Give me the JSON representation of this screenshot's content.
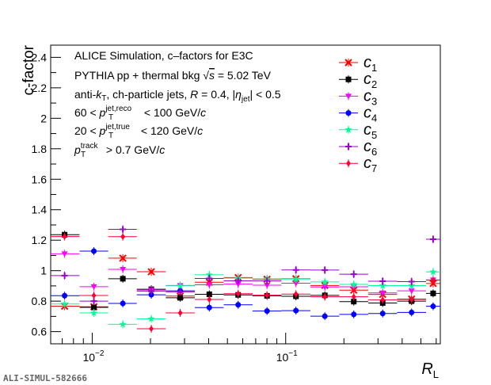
{
  "figure_id": "ALI-SIMUL-582666",
  "chart_data": {
    "type": "scatter",
    "xlabel": "R",
    "xlabel_sub": "L",
    "ylabel": "c-factor",
    "x_scale": "log",
    "xlim": [
      0.0061,
      0.63
    ],
    "ylim": [
      0.52,
      2.48
    ],
    "yticks": [
      "0.6",
      "0.8",
      "1",
      "1.2",
      "1.4",
      "1.6",
      "1.8",
      "2",
      "2.2",
      "2.4"
    ],
    "xtick_labels": [
      {
        "base": "10",
        "exp": "−2"
      },
      {
        "base": "10",
        "exp": "−1"
      }
    ],
    "grid": false,
    "legend_position": "top-right",
    "annotations": [
      "ALICE Simulation, c–factors for E3C",
      "PYTHIA pp + thermal bkg √s = 5.02 TeV",
      "anti-kT, ch-particle jets, R = 0.4, |ηjet| < 0.5",
      "60 < pTjet,reco < 100 GeV/c",
      "20 < pTjet,true < 120 GeV/c",
      "pTtrack > 0.7 GeV/c"
    ],
    "annotation_parts": {
      "line1": "ALICE Simulation, c–factors for E3C",
      "line2_pre": "PYTHIA pp + thermal bkg ",
      "line2_sqrt": "√",
      "line2_s": "s",
      "line2_post": " = 5.02 TeV",
      "line3_pre": "anti-",
      "line3_k": "k",
      "line3_ksub": "T",
      "line3_mid": ", ch-particle jets, ",
      "line3_R": "R",
      "line3_eq": " = 0.4, |",
      "line3_eta": "η",
      "line3_etasub": "jet",
      "line3_post": "| < 0.5",
      "line4_pre": "60 < ",
      "line4_p": "p",
      "line4_sup": "jet,reco",
      "line4_sub": "T",
      "line4_post": " < 100 GeV/",
      "line4_c": "c",
      "line5_pre": "20 < ",
      "line5_p": "p",
      "line5_sup": "jet,true",
      "line5_sub": "T",
      "line5_post": " < 120 GeV/",
      "line5_c": "c",
      "line6_p": "p",
      "line6_sup": "track",
      "line6_sub": "T",
      "line6_post": " > 0.7 GeV/",
      "line6_c": "c"
    },
    "x_bin_edges": [
      0.0061,
      0.0086,
      0.0121,
      0.017,
      0.024,
      0.0339,
      0.0478,
      0.0674,
      0.0951,
      0.1342,
      0.1893,
      0.2671,
      0.3768,
      0.5316,
      0.63
    ],
    "x": [
      0.0072,
      0.0102,
      0.0144,
      0.0202,
      0.0285,
      0.0403,
      0.0568,
      0.0801,
      0.113,
      0.1594,
      0.2249,
      0.3173,
      0.4476,
      0.5784
    ],
    "series": [
      {
        "name": "c",
        "sub": "1",
        "color": "#ff0000",
        "marker": "cross",
        "values": [
          0.767,
          0.763,
          1.082,
          0.993,
          0.833,
          0.924,
          0.955,
          0.944,
          0.947,
          0.903,
          0.872,
          0.844,
          0.814,
          0.916
        ]
      },
      {
        "name": "c",
        "sub": "2",
        "color": "#000000",
        "marker": "square",
        "values": [
          1.236,
          0.759,
          0.947,
          0.878,
          0.822,
          0.845,
          0.841,
          0.835,
          0.832,
          0.838,
          0.797,
          0.788,
          0.8,
          0.851
        ]
      },
      {
        "name": "c",
        "sub": "3",
        "color": "#ff00ff",
        "marker": "triangle-down",
        "values": [
          1.111,
          0.895,
          1.009,
          0.873,
          0.903,
          0.907,
          0.912,
          0.905,
          0.918,
          0.893,
          0.894,
          0.854,
          0.868,
          0.939
        ]
      },
      {
        "name": "c",
        "sub": "4",
        "color": "#0000ff",
        "marker": "circle",
        "values": [
          0.836,
          1.128,
          0.785,
          0.842,
          0.868,
          0.758,
          0.776,
          0.735,
          0.738,
          0.701,
          0.713,
          0.719,
          0.726,
          0.766
        ]
      },
      {
        "name": "c",
        "sub": "5",
        "color": "#00ff99",
        "marker": "star",
        "values": [
          0.781,
          0.723,
          0.648,
          0.684,
          0.901,
          0.973,
          0.951,
          0.946,
          0.945,
          0.926,
          0.91,
          0.902,
          0.902,
          0.992
        ]
      },
      {
        "name": "c",
        "sub": "6",
        "color": "#9900cc",
        "marker": "tri-cross",
        "values": [
          0.968,
          0.8,
          1.271,
          0.865,
          0.861,
          0.949,
          0.933,
          0.933,
          1.005,
          1.004,
          0.977,
          0.931,
          0.928,
          1.206
        ]
      },
      {
        "name": "c",
        "sub": "7",
        "color": "#ff0033",
        "marker": "diamond",
        "values": [
          1.224,
          0.837,
          1.223,
          0.619,
          0.723,
          0.811,
          0.849,
          0.839,
          0.846,
          0.829,
          0.829,
          0.808,
          0.811,
          0.938
        ]
      }
    ]
  }
}
